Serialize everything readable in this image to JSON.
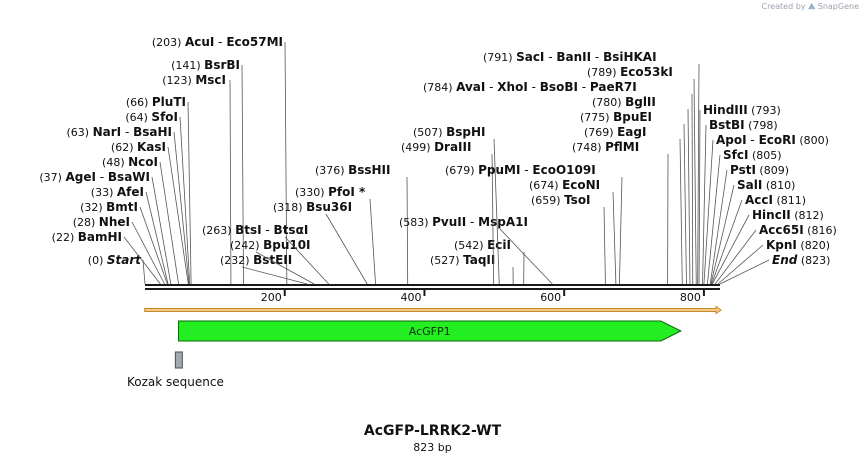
{
  "credit": {
    "prefix": "Created by",
    "brand": "SnapGene"
  },
  "title": "AcGFP-LRRK2-WT",
  "length_label": "823 bp",
  "sequence_length": 823,
  "ticks": [
    {
      "pos": 200,
      "label": "200"
    },
    {
      "pos": 400,
      "label": "400"
    },
    {
      "pos": 600,
      "label": "600"
    },
    {
      "pos": 800,
      "label": "800"
    }
  ],
  "features": {
    "orf_bar": {
      "start": 1,
      "end": 823
    },
    "acgfp": {
      "label": "AcGFP1",
      "start": 48,
      "end": 767
    },
    "kozak": {
      "label": "Kozak sequence",
      "start": 42,
      "end": 52
    }
  },
  "left_labels": [
    {
      "names": [
        {
          "text": "Start",
          "italic": true
        }
      ],
      "pos_label": "(0)",
      "pos": 0
    },
    {
      "names": [
        {
          "text": "BamHI"
        }
      ],
      "pos_label": "(22)",
      "pos": 22
    },
    {
      "names": [
        {
          "text": "NheI"
        }
      ],
      "pos_label": "(28)",
      "pos": 28
    },
    {
      "names": [
        {
          "text": "BmtI"
        }
      ],
      "pos_label": "(32)",
      "pos": 32
    },
    {
      "names": [
        {
          "text": "AfeI"
        }
      ],
      "pos_label": "(33)",
      "pos": 33
    },
    {
      "names": [
        {
          "text": "AgeI"
        },
        {
          "text": "BsaWI"
        }
      ],
      "pos_label": "(37)",
      "pos": 37
    },
    {
      "names": [
        {
          "text": "NcoI"
        }
      ],
      "pos_label": "(48)",
      "pos": 48
    },
    {
      "names": [
        {
          "text": "KasI"
        }
      ],
      "pos_label": "(62)",
      "pos": 62
    },
    {
      "names": [
        {
          "text": "NarI"
        },
        {
          "text": "BsaHI"
        }
      ],
      "pos_label": "(63)",
      "pos": 63
    },
    {
      "names": [
        {
          "text": "SfoI"
        }
      ],
      "pos_label": "(64)",
      "pos": 64
    },
    {
      "names": [
        {
          "text": "PluTI"
        }
      ],
      "pos_label": "(66)",
      "pos": 66
    },
    {
      "names": [
        {
          "text": "MscI"
        }
      ],
      "pos_label": "(123)",
      "pos": 123
    },
    {
      "names": [
        {
          "text": "BsrBI"
        }
      ],
      "pos_label": "(141)",
      "pos": 141
    },
    {
      "names": [
        {
          "text": "AcuI"
        },
        {
          "text": "Eco57MI"
        }
      ],
      "pos_label": "(203)",
      "pos": 203
    }
  ],
  "middle_labels": [
    {
      "names": [
        {
          "text": "BstEII"
        }
      ],
      "pos_label": "(232)",
      "pos": 232
    },
    {
      "names": [
        {
          "text": "Bpu10I"
        }
      ],
      "pos_label": "(242)",
      "pos": 242
    },
    {
      "names": [
        {
          "text": "BtsI"
        },
        {
          "text": "BtsαI"
        }
      ],
      "pos_label": "(263)",
      "pos": 263
    },
    {
      "names": [
        {
          "text": "Bsu36I"
        }
      ],
      "pos_label": "(318)",
      "pos": 318
    },
    {
      "names": [
        {
          "text": "PfoI *"
        }
      ],
      "pos_label": "(330)",
      "pos": 330
    },
    {
      "names": [
        {
          "text": "BssHII"
        }
      ],
      "pos_label": "(376)",
      "pos": 376
    },
    {
      "names": [
        {
          "text": "TaqII"
        }
      ],
      "pos_label": "(527)",
      "pos": 527
    },
    {
      "names": [
        {
          "text": "EciI"
        }
      ],
      "pos_label": "(542)",
      "pos": 542
    },
    {
      "names": [
        {
          "text": "PvuII"
        },
        {
          "text": "MspA1I"
        }
      ],
      "pos_label": "(583)",
      "pos": 583
    },
    {
      "names": [
        {
          "text": "DraIII"
        }
      ],
      "pos_label": "(499)",
      "pos": 499
    },
    {
      "names": [
        {
          "text": "BspHI"
        }
      ],
      "pos_label": "(507)",
      "pos": 507
    },
    {
      "names": [
        {
          "text": "TsoI"
        }
      ],
      "pos_label": "(659)",
      "pos": 659
    },
    {
      "names": [
        {
          "text": "EcoNI"
        }
      ],
      "pos_label": "(674)",
      "pos": 674
    },
    {
      "names": [
        {
          "text": "PpuMI"
        },
        {
          "text": "EcoO109I"
        }
      ],
      "pos_label": "(679)",
      "pos": 679
    },
    {
      "names": [
        {
          "text": "PflMI"
        }
      ],
      "pos_label": "(748)",
      "pos": 748
    },
    {
      "names": [
        {
          "text": "EagI"
        }
      ],
      "pos_label": "(769)",
      "pos": 769
    },
    {
      "names": [
        {
          "text": "BpuEI"
        }
      ],
      "pos_label": "(775)",
      "pos": 775
    },
    {
      "names": [
        {
          "text": "BglII"
        }
      ],
      "pos_label": "(780)",
      "pos": 780
    },
    {
      "names": [
        {
          "text": "AvaI"
        },
        {
          "text": "XhoI"
        },
        {
          "text": "BsoBI"
        },
        {
          "text": "PaeR7I"
        }
      ],
      "pos_label": "(784)",
      "pos": 784
    },
    {
      "names": [
        {
          "text": "Eco53kI"
        }
      ],
      "pos_label": "(789)",
      "pos": 789
    },
    {
      "names": [
        {
          "text": "SacI"
        },
        {
          "text": "BanII"
        },
        {
          "text": "BsiHKAI"
        }
      ],
      "pos_label": "(791)",
      "pos": 791
    }
  ],
  "right_labels": [
    {
      "names": [
        {
          "text": "HindIII"
        }
      ],
      "pos_label": "(793)",
      "pos": 793
    },
    {
      "names": [
        {
          "text": "BstBI"
        }
      ],
      "pos_label": "(798)",
      "pos": 798
    },
    {
      "names": [
        {
          "text": "ApoI"
        },
        {
          "text": "EcoRI"
        }
      ],
      "pos_label": "(800)",
      "pos": 800
    },
    {
      "names": [
        {
          "text": "SfcI"
        }
      ],
      "pos_label": "(805)",
      "pos": 805
    },
    {
      "names": [
        {
          "text": "PstI"
        }
      ],
      "pos_label": "(809)",
      "pos": 809
    },
    {
      "names": [
        {
          "text": "SalI"
        }
      ],
      "pos_label": "(810)",
      "pos": 810
    },
    {
      "names": [
        {
          "text": "AccI"
        }
      ],
      "pos_label": "(811)",
      "pos": 811
    },
    {
      "names": [
        {
          "text": "HincII"
        }
      ],
      "pos_label": "(812)",
      "pos": 812
    },
    {
      "names": [
        {
          "text": "Acc65I"
        }
      ],
      "pos_label": "(816)",
      "pos": 816
    },
    {
      "names": [
        {
          "text": "KpnI"
        }
      ],
      "pos_label": "(820)",
      "pos": 820
    },
    {
      "names": [
        {
          "text": "End",
          "italic": true
        }
      ],
      "pos_label": "(823)",
      "pos": 823
    }
  ],
  "colors": {
    "backbone": "#1a1a1a",
    "orf_fill": "#f6c98a",
    "orf_stroke": "#c8892a",
    "gfp_fill": "#22ee22",
    "gfp_stroke": "#0a6a0a",
    "kozak_fill": "#a3a9b3",
    "kozak_stroke": "#4a4f57",
    "leader": "#555555"
  }
}
